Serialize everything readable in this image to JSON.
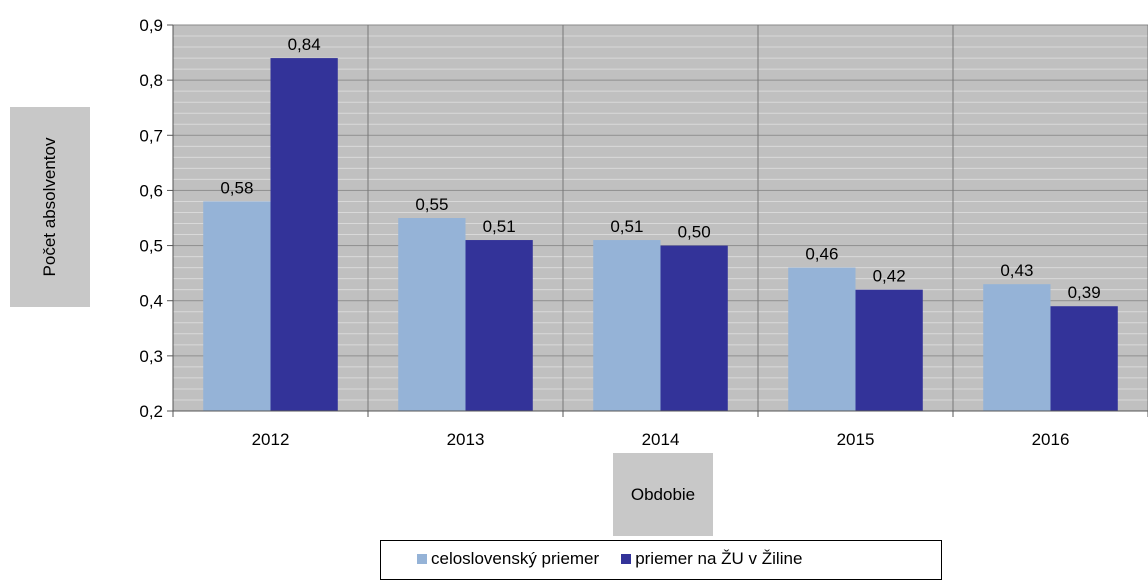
{
  "chart_data": {
    "type": "bar",
    "categories": [
      "2012",
      "2013",
      "2014",
      "2015",
      "2016"
    ],
    "series": [
      {
        "name": "celoslovenský priemer",
        "values": [
          0.58,
          0.55,
          0.51,
          0.46,
          0.43
        ],
        "color": "#95b3d7",
        "labels": [
          "0,58",
          "0,55",
          "0,51",
          "0,46",
          "0,43"
        ]
      },
      {
        "name": "priemer na ŽU v Žiline",
        "values": [
          0.84,
          0.51,
          0.5,
          0.42,
          0.39
        ],
        "color": "#333399",
        "labels": [
          "0,84",
          "0,51",
          "0,50",
          "0,42",
          "0,39"
        ]
      }
    ],
    "yticks": [
      {
        "v": 0.2,
        "label": "0,2"
      },
      {
        "v": 0.3,
        "label": "0,3"
      },
      {
        "v": 0.4,
        "label": "0,4"
      },
      {
        "v": 0.5,
        "label": "0,5"
      },
      {
        "v": 0.6,
        "label": "0,6"
      },
      {
        "v": 0.7,
        "label": "0,7"
      },
      {
        "v": 0.8,
        "label": "0,8"
      },
      {
        "v": 0.9,
        "label": "0,9"
      }
    ],
    "xlabel": "Obdobie",
    "ylabel": "Počet absolventov",
    "ylim": [
      0.2,
      0.9
    ],
    "grid": true,
    "minor_grid_step": 0.02,
    "legend_position": "bottom",
    "plot_background": "#c0c0c0"
  }
}
